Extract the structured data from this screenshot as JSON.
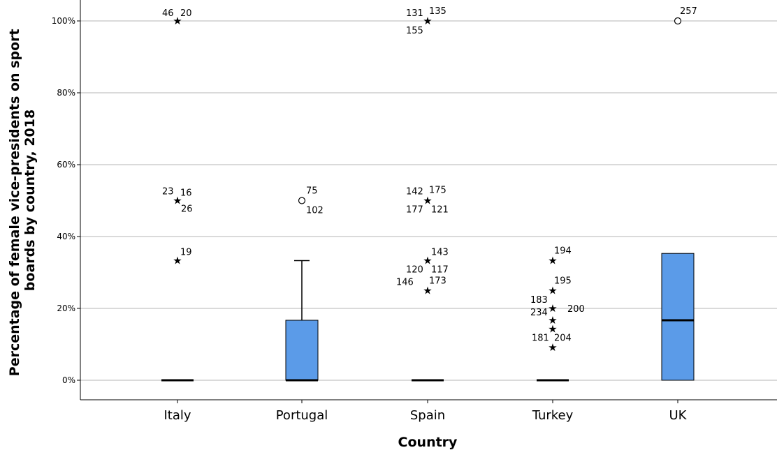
{
  "chart_data": {
    "type": "boxplot",
    "xlabel": "Country",
    "ylabel": "Percentage of female vice-presidents on sport boards by country, 2018",
    "ylabel_lines": [
      "Percentage of female vice-presidents on sport",
      "boards by country, 2018"
    ],
    "ylim": [
      0,
      100
    ],
    "yticks": [
      0,
      20,
      40,
      60,
      80,
      100
    ],
    "ytick_labels": [
      "0%",
      "20%",
      "40%",
      "60%",
      "80%",
      "100%"
    ],
    "grid": true,
    "box_color": "#5b9be8",
    "categories": [
      "Italy",
      "Portugal",
      "Spain",
      "Turkey",
      "UK"
    ],
    "boxes": [
      {
        "category": "Italy",
        "q1": 0,
        "median": 0,
        "q3": 0,
        "whisker_low": 0,
        "whisker_high": 0
      },
      {
        "category": "Portugal",
        "q1": 0,
        "median": 0,
        "q3": 16.7,
        "whisker_low": 0,
        "whisker_high": 33.3
      },
      {
        "category": "Spain",
        "q1": 0,
        "median": 0,
        "q3": 0,
        "whisker_low": 0,
        "whisker_high": 0
      },
      {
        "category": "Turkey",
        "q1": 0,
        "median": 0,
        "q3": 0,
        "whisker_low": 0,
        "whisker_high": 0
      },
      {
        "category": "UK",
        "q1": 0,
        "median": 16.7,
        "q3": 35.3,
        "whisker_low": 0,
        "whisker_high": 35.3
      }
    ],
    "outliers": [
      {
        "category": "Italy",
        "value": 100,
        "marker": "star",
        "labels": [
          {
            "text": "46",
            "dx": -22,
            "dy": -7
          },
          {
            "text": "20",
            "dx": 4,
            "dy": -7
          }
        ]
      },
      {
        "category": "Italy",
        "value": 50,
        "marker": "star",
        "labels": [
          {
            "text": "23",
            "dx": -22,
            "dy": -9
          },
          {
            "text": "16",
            "dx": 4,
            "dy": -7
          },
          {
            "text": "26",
            "dx": 5,
            "dy": 16
          }
        ]
      },
      {
        "category": "Italy",
        "value": 33.3,
        "marker": "star",
        "labels": [
          {
            "text": "19",
            "dx": 4,
            "dy": -8
          }
        ]
      },
      {
        "category": "Portugal",
        "value": 50,
        "marker": "circle",
        "labels": [
          {
            "text": "75",
            "dx": 6,
            "dy": -10
          },
          {
            "text": "102",
            "dx": 6,
            "dy": 18
          }
        ]
      },
      {
        "category": "Spain",
        "value": 100,
        "marker": "star",
        "labels": [
          {
            "text": "131",
            "dx": -31,
            "dy": -7
          },
          {
            "text": "135",
            "dx": 2,
            "dy": -10
          },
          {
            "text": "155",
            "dx": -31,
            "dy": 18
          }
        ]
      },
      {
        "category": "Spain",
        "value": 50,
        "marker": "star",
        "labels": [
          {
            "text": "142",
            "dx": -31,
            "dy": -9
          },
          {
            "text": "175",
            "dx": 2,
            "dy": -11
          },
          {
            "text": "177",
            "dx": -31,
            "dy": 17
          },
          {
            "text": "121",
            "dx": 5,
            "dy": 17
          }
        ]
      },
      {
        "category": "Spain",
        "value": 33.3,
        "marker": "star",
        "labels": [
          {
            "text": "143",
            "dx": 5,
            "dy": -8
          },
          {
            "text": "120",
            "dx": -31,
            "dy": 17
          },
          {
            "text": "117",
            "dx": 5,
            "dy": 17
          }
        ]
      },
      {
        "category": "Spain",
        "value": 25,
        "marker": "star",
        "labels": [
          {
            "text": "146",
            "dx": -45,
            "dy": -8
          },
          {
            "text": "173",
            "dx": 2,
            "dy": -10
          }
        ]
      },
      {
        "category": "Turkey",
        "value": 33.3,
        "marker": "star",
        "labels": [
          {
            "text": "194",
            "dx": 2,
            "dy": -10
          }
        ]
      },
      {
        "category": "Turkey",
        "value": 25,
        "marker": "star",
        "labels": [
          {
            "text": "195",
            "dx": 2,
            "dy": -10
          }
        ]
      },
      {
        "category": "Turkey",
        "value": 20,
        "marker": "star",
        "labels": [
          {
            "text": "183",
            "dx": -32,
            "dy": -8
          },
          {
            "text": "234",
            "dx": -32,
            "dy": 10
          },
          {
            "text": "200",
            "dx": 21,
            "dy": 5
          }
        ]
      },
      {
        "category": "Turkey",
        "value": 16.7,
        "marker": "star",
        "labels": []
      },
      {
        "category": "Turkey",
        "value": 14.3,
        "marker": "star",
        "labels": [
          {
            "text": "181",
            "dx": -30,
            "dy": 17
          },
          {
            "text": "204",
            "dx": 2,
            "dy": 17
          }
        ]
      },
      {
        "category": "Turkey",
        "value": 9.1,
        "marker": "star",
        "labels": []
      },
      {
        "category": "UK",
        "value": 100,
        "marker": "circle",
        "labels": [
          {
            "text": "257",
            "dx": 3,
            "dy": -10
          }
        ]
      }
    ]
  }
}
